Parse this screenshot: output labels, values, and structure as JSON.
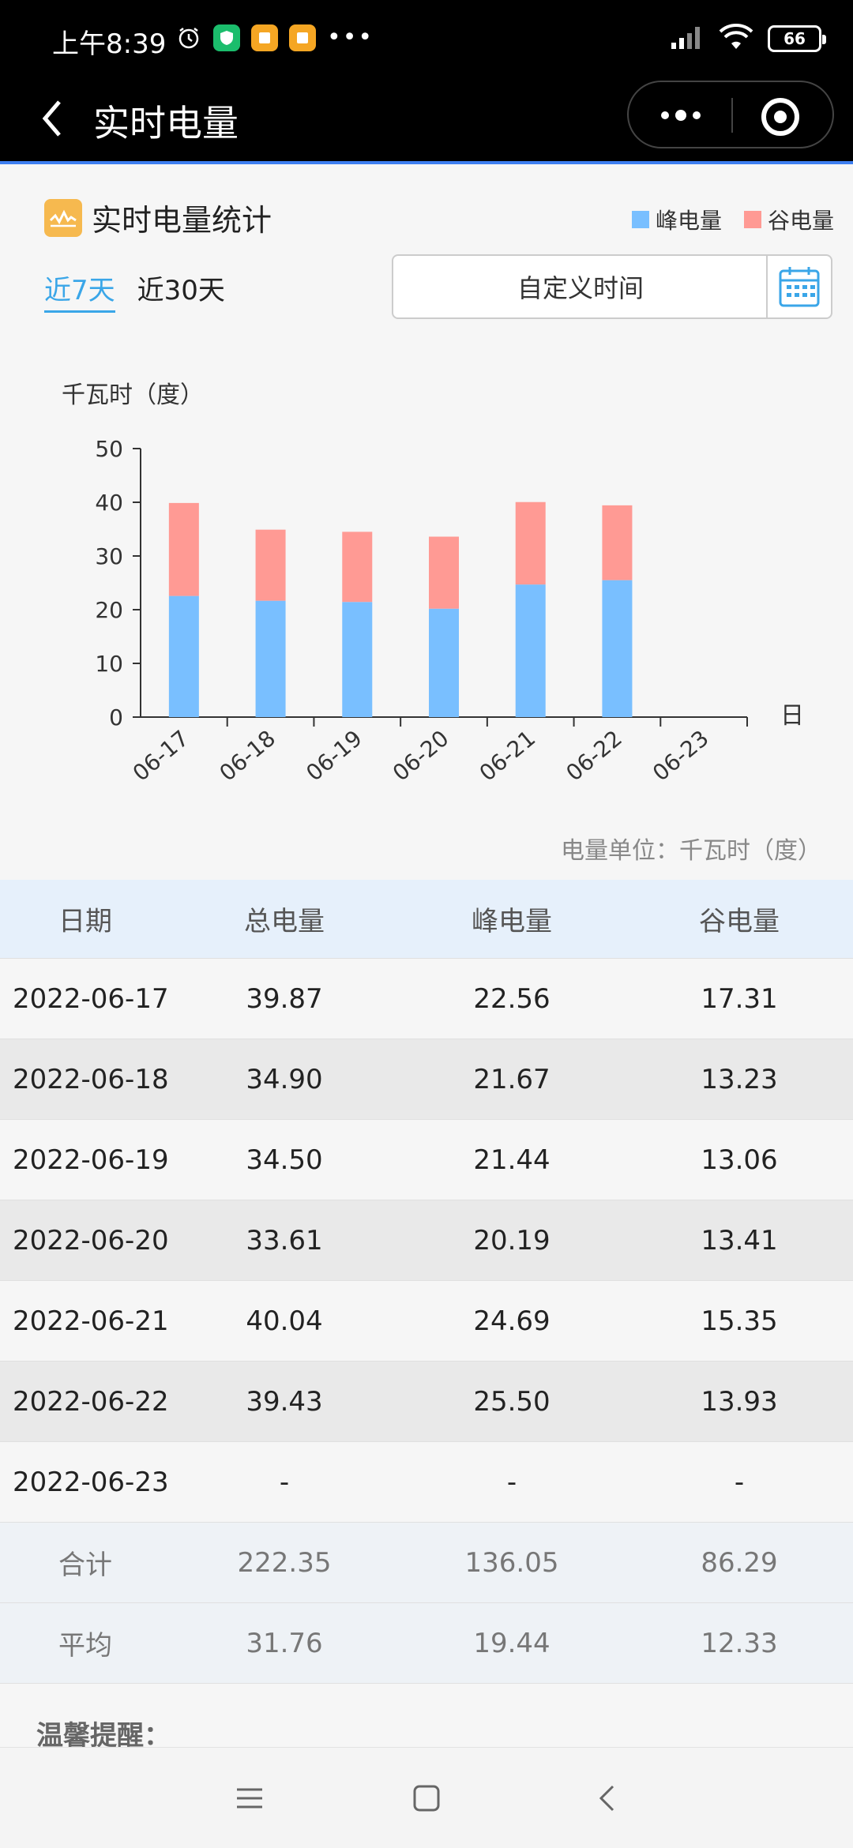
{
  "status": {
    "time": "上午8:39",
    "battery": "66"
  },
  "nav": {
    "title": "实时电量"
  },
  "section": {
    "title": "实时电量统计"
  },
  "legend": [
    {
      "label": "峰电量",
      "color": "#79bfff"
    },
    {
      "label": "谷电量",
      "color": "#ff9a94"
    }
  ],
  "tabs": [
    {
      "label": "近7天",
      "active": true
    },
    {
      "label": "近30天",
      "active": false
    }
  ],
  "custom_time_label": "自定义时间",
  "chart_data": {
    "type": "bar",
    "stacked": true,
    "categories": [
      "06-17",
      "06-18",
      "06-19",
      "06-20",
      "06-21",
      "06-22",
      "06-23"
    ],
    "series": [
      {
        "name": "峰电量",
        "values": [
          22.56,
          21.67,
          21.44,
          20.19,
          24.69,
          25.5,
          null
        ],
        "color": "#79bfff"
      },
      {
        "name": "谷电量",
        "values": [
          17.31,
          13.23,
          13.06,
          13.41,
          15.35,
          13.93,
          null
        ],
        "color": "#ff9a94"
      }
    ],
    "ylabel": "千瓦时（度）",
    "xlabel": "日",
    "ylim": [
      0,
      50
    ],
    "yticks": [
      0,
      10,
      20,
      30,
      40,
      50
    ],
    "grid": false
  },
  "unit_note": "电量单位：千瓦时（度）",
  "table": {
    "headers": [
      "日期",
      "总电量",
      "峰电量",
      "谷电量"
    ],
    "rows": [
      [
        "2022-06-17",
        "39.87",
        "22.56",
        "17.31"
      ],
      [
        "2022-06-18",
        "34.90",
        "21.67",
        "13.23"
      ],
      [
        "2022-06-19",
        "34.50",
        "21.44",
        "13.06"
      ],
      [
        "2022-06-20",
        "33.61",
        "20.19",
        "13.41"
      ],
      [
        "2022-06-21",
        "40.04",
        "24.69",
        "15.35"
      ],
      [
        "2022-06-22",
        "39.43",
        "25.50",
        "13.93"
      ],
      [
        "2022-06-23",
        "-",
        "-",
        "-"
      ]
    ],
    "summary": [
      [
        "合计",
        "222.35",
        "136.05",
        "86.29"
      ],
      [
        "平均",
        "31.76",
        "19.44",
        "12.33"
      ]
    ]
  },
  "tip_title": "温馨提醒："
}
